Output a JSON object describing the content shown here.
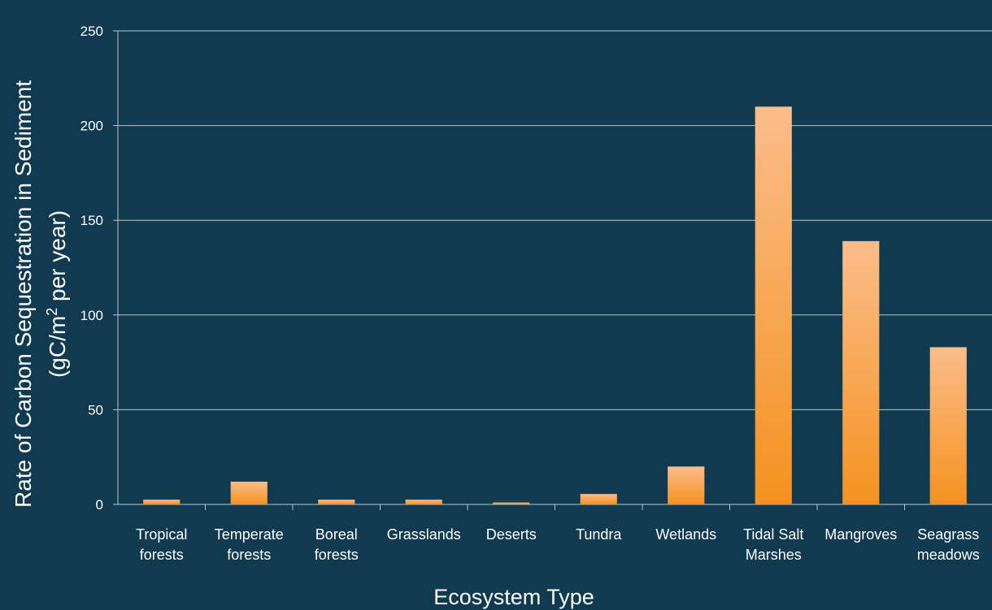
{
  "chart_data": {
    "type": "bar",
    "categories": [
      [
        "Tropical",
        "forests"
      ],
      [
        "Temperate",
        "forests"
      ],
      [
        "Boreal",
        "forests"
      ],
      [
        "Grasslands"
      ],
      [
        "Deserts"
      ],
      [
        "Tundra"
      ],
      [
        "Wetlands"
      ],
      [
        "Tidal Salt",
        "Marshes"
      ],
      [
        "Mangroves"
      ],
      [
        "Seagrass",
        "meadows"
      ]
    ],
    "values": [
      2.5,
      12,
      2.5,
      2.5,
      1,
      5.5,
      20,
      210,
      139,
      83
    ],
    "xlabel": "Ecosystem Type",
    "ylabel_line1": "Rate of Carbon Sequestration in Sediment",
    "ylabel_line2_prefix": "(gC/m",
    "ylabel_line2_sup": "2",
    "ylabel_line2_suffix": " per year)",
    "ylim": [
      0,
      250
    ],
    "yticks": [
      0,
      50,
      100,
      150,
      200,
      250
    ],
    "grid": true,
    "colors": {
      "background": "#0f3a4f",
      "bar_top": "#fbbd8a",
      "bar_bottom": "#f4921f",
      "grid": "#b9c6cc",
      "text": "#ffffff"
    }
  }
}
